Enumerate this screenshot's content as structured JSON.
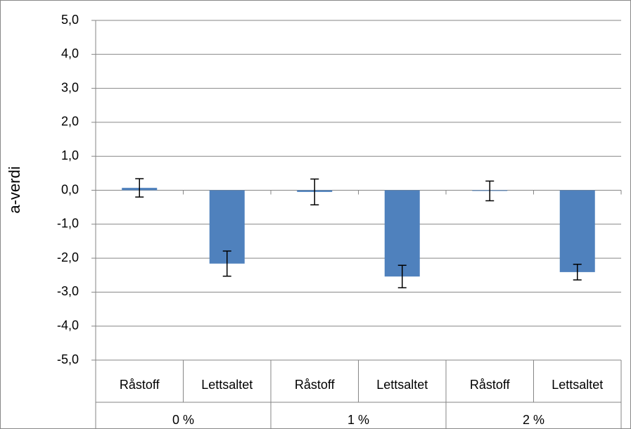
{
  "chart_data": {
    "type": "bar",
    "y_label": "a-verdi",
    "categories": [
      "Råstoff",
      "Lettsaltet",
      "Råstoff",
      "Lettsaltet",
      "Råstoff",
      "Lettsaltet"
    ],
    "groups": [
      "0 %",
      "1 %",
      "2 %"
    ],
    "values": [
      0.07,
      -2.16,
      -0.05,
      -2.54,
      -0.02,
      -2.41
    ],
    "errors": [
      0.27,
      0.37,
      0.38,
      0.33,
      0.29,
      0.23
    ],
    "color": "#4f81bd",
    "ylim": [
      -5,
      5
    ],
    "yticks": [
      {
        "value": -5,
        "label": "-5,0"
      },
      {
        "value": -4,
        "label": "-4,0"
      },
      {
        "value": -3,
        "label": "-3,0"
      },
      {
        "value": -2,
        "label": "-2,0"
      },
      {
        "value": -1,
        "label": "-1,0"
      },
      {
        "value": 0,
        "label": "0,0"
      },
      {
        "value": 1,
        "label": "1,0"
      },
      {
        "value": 2,
        "label": "2,0"
      },
      {
        "value": 3,
        "label": "3,0"
      },
      {
        "value": 4,
        "label": "4,0"
      },
      {
        "value": 5,
        "label": "5,0"
      }
    ],
    "grid": true
  }
}
